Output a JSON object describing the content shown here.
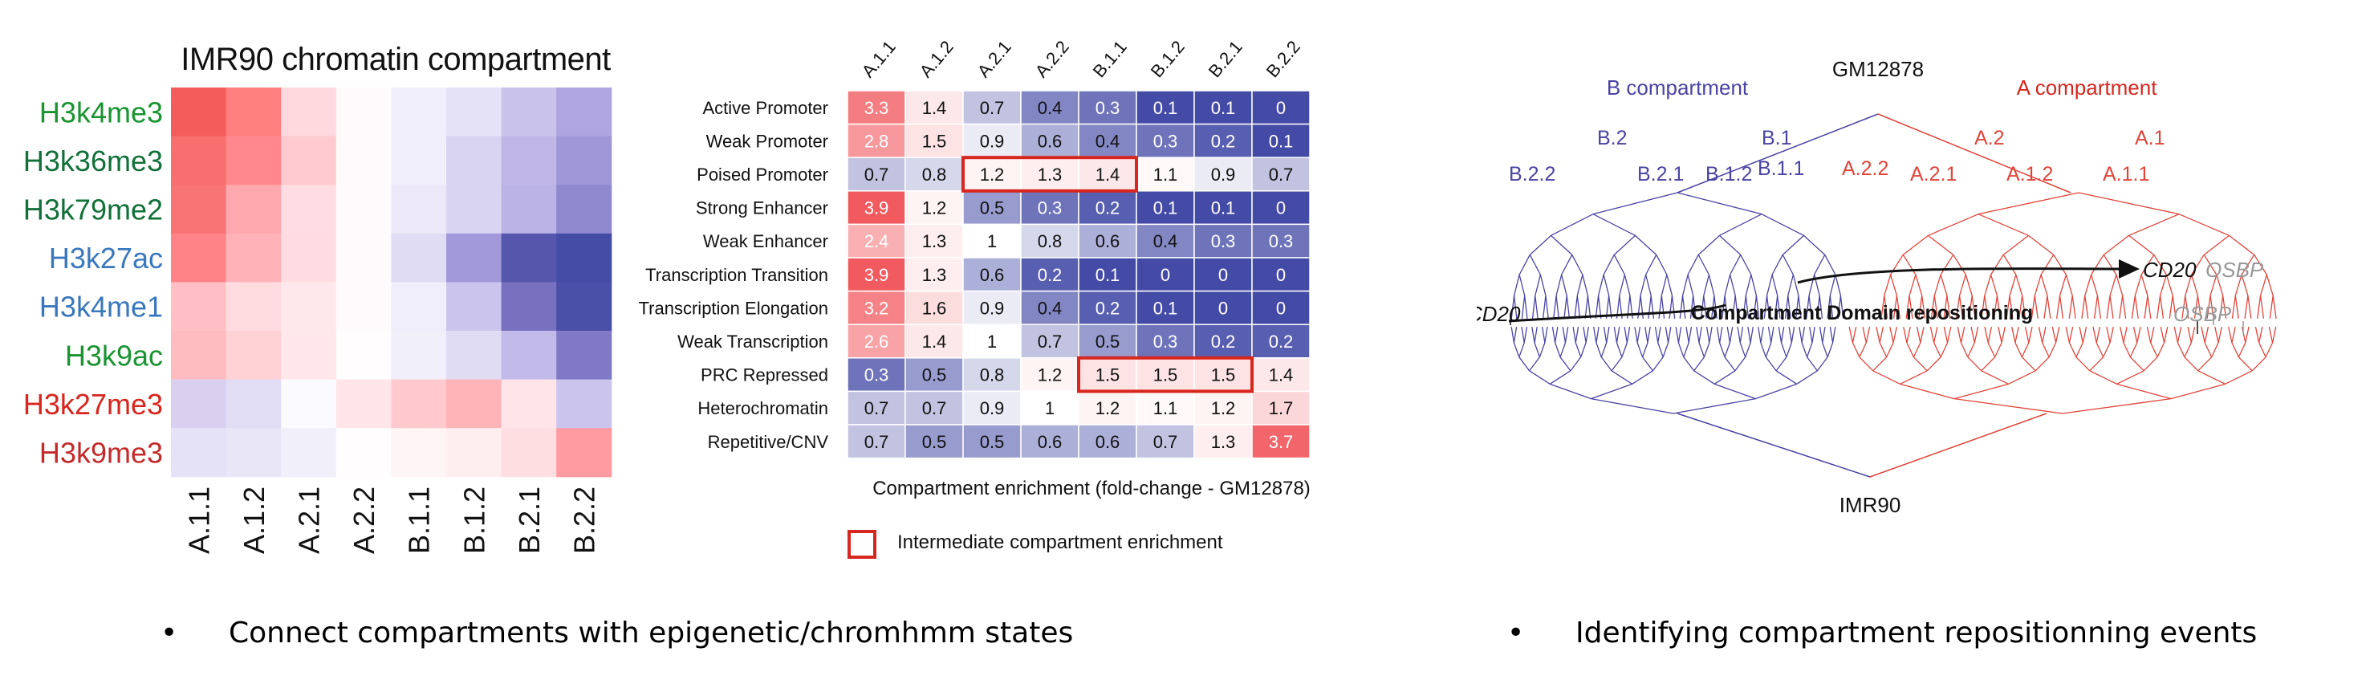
{
  "chart_data": [
    {
      "type": "heatmap",
      "title": "IMR90 chromatin compartment",
      "rows": [
        "H3k4me3",
        "H3k36me3",
        "H3k79me2",
        "H3k27ac",
        "H3k4me1",
        "H3k9ac",
        "H3k27me3",
        "H3k9me3"
      ],
      "row_label_colors": [
        "#1a9431",
        "#12703a",
        "#12703a",
        "#3a78bd",
        "#3a78bd",
        "#1a9431",
        "#d7261e",
        "#c42a2a"
      ],
      "columns": [
        "A.1.1",
        "A.1.2",
        "A.2.1",
        "A.2.2",
        "B.1.1",
        "B.1.2",
        "B.2.1",
        "B.2.2"
      ],
      "colors": [
        [
          "#f45c5c",
          "#ff7f7f",
          "#ffd9de",
          "#fffbfd",
          "#f1effb",
          "#e5e1f6",
          "#c9c2eb",
          "#afa5df"
        ],
        [
          "#f96e6e",
          "#ff888c",
          "#ffcad0",
          "#fffbfd",
          "#f1effb",
          "#d9d4f1",
          "#c0b7e6",
          "#9f97d8"
        ],
        [
          "#f97474",
          "#ffa8ad",
          "#ffdde2",
          "#fffbfd",
          "#ece8f8",
          "#d9d4f1",
          "#bbb2e5",
          "#8f89cf"
        ],
        [
          "#ff8387",
          "#ffb2b7",
          "#ffdce1",
          "#fffbfd",
          "#e0dcf4",
          "#a199d9",
          "#5656ad",
          "#444ca6"
        ],
        [
          "#ffbfc4",
          "#ffdbdf",
          "#ffe8eb",
          "#fffbfd",
          "#f0eefa",
          "#cbc4ec",
          "#7871c0",
          "#4a4fa8"
        ],
        [
          "#ffbcc0",
          "#ffd2d6",
          "#ffe7ea",
          "#fffdfe",
          "#f1effa",
          "#e0dcf4",
          "#c2bbe9",
          "#807ac6"
        ],
        [
          "#d9d0f0",
          "#e0ddf4",
          "#fbfaff",
          "#ffe5e8",
          "#ffc9cd",
          "#ffb4b8",
          "#ffe5e8",
          "#cbc4ec"
        ],
        [
          "#e5e1f6",
          "#e8e6f7",
          "#f1f0fa",
          "#fffdfe",
          "#fff5f6",
          "#ffeef0",
          "#ffdee2",
          "#ff9ba0"
        ]
      ],
      "scale": "diverging red (enriched) to blue (depleted)"
    },
    {
      "type": "heatmap",
      "title": "",
      "xlabel": "Compartment enrichment (fold-change - GM12878)",
      "columns": [
        "A.1.1",
        "A.1.2",
        "A.2.1",
        "A.2.2",
        "B.1.1",
        "B.1.2",
        "B.2.1",
        "B.2.2"
      ],
      "rows": [
        "Active Promoter",
        "Weak Promoter",
        "Poised Promoter",
        "Strong Enhancer",
        "Weak Enhancer",
        "Transcription Transition",
        "Transcription Elongation",
        "Weak Transcription",
        "PRC Repressed",
        "Heterochromatin",
        "Repetitive/CNV"
      ],
      "values": [
        [
          3.3,
          1.4,
          0.7,
          0.4,
          0.3,
          0.1,
          0.1,
          0
        ],
        [
          2.8,
          1.5,
          0.9,
          0.6,
          0.4,
          0.3,
          0.2,
          0.1
        ],
        [
          0.7,
          0.8,
          1.2,
          1.3,
          1.4,
          1.1,
          0.9,
          0.7
        ],
        [
          3.9,
          1.2,
          0.5,
          0.3,
          0.2,
          0.1,
          0.1,
          0
        ],
        [
          2.4,
          1.3,
          1,
          0.8,
          0.6,
          0.4,
          0.3,
          0.3
        ],
        [
          3.9,
          1.3,
          0.6,
          0.2,
          0.1,
          0,
          0,
          0
        ],
        [
          3.2,
          1.6,
          0.9,
          0.4,
          0.2,
          0.1,
          0,
          0
        ],
        [
          2.6,
          1.4,
          1,
          0.7,
          0.5,
          0.3,
          0.2,
          0.2
        ],
        [
          0.3,
          0.5,
          0.8,
          1.2,
          1.5,
          1.5,
          1.5,
          1.4
        ],
        [
          0.7,
          0.7,
          0.9,
          1,
          1.2,
          1.1,
          1.2,
          1.7
        ],
        [
          0.7,
          0.5,
          0.5,
          0.6,
          0.6,
          0.7,
          1.3,
          3.7
        ]
      ],
      "highlights": [
        {
          "row": "Poised Promoter",
          "columns": [
            "A.2.1",
            "A.2.2",
            "B.1.1"
          ]
        },
        {
          "row": "PRC Repressed",
          "columns": [
            "B.1.1",
            "B.1.2",
            "B.2.1"
          ]
        }
      ],
      "legend": {
        "label": "Intermediate compartment enrichment",
        "color": "#d7261e"
      }
    }
  ],
  "dendrogram": {
    "top_label": "GM12878",
    "bottom_label": "IMR90",
    "b_label": "B compartment",
    "a_label": "A compartment",
    "level1": [
      "B.2",
      "B.1",
      "A.2",
      "A.1"
    ],
    "level2": [
      "B.2.2",
      "B.2.1",
      "B.1.2",
      "B.1.1",
      "A.2.2",
      "A.2.1",
      "A.1.2",
      "A.1.1"
    ],
    "repositioning_label": "Compartment Domain repositioning",
    "gene1": "CD20",
    "gene2": "OSBP",
    "b_color": "#4a43a3",
    "a_color": "#e0443a"
  },
  "bullets": [
    "Connect compartments with epigenetic/chromhmm states",
    "Identifying compartment repositionning events"
  ]
}
